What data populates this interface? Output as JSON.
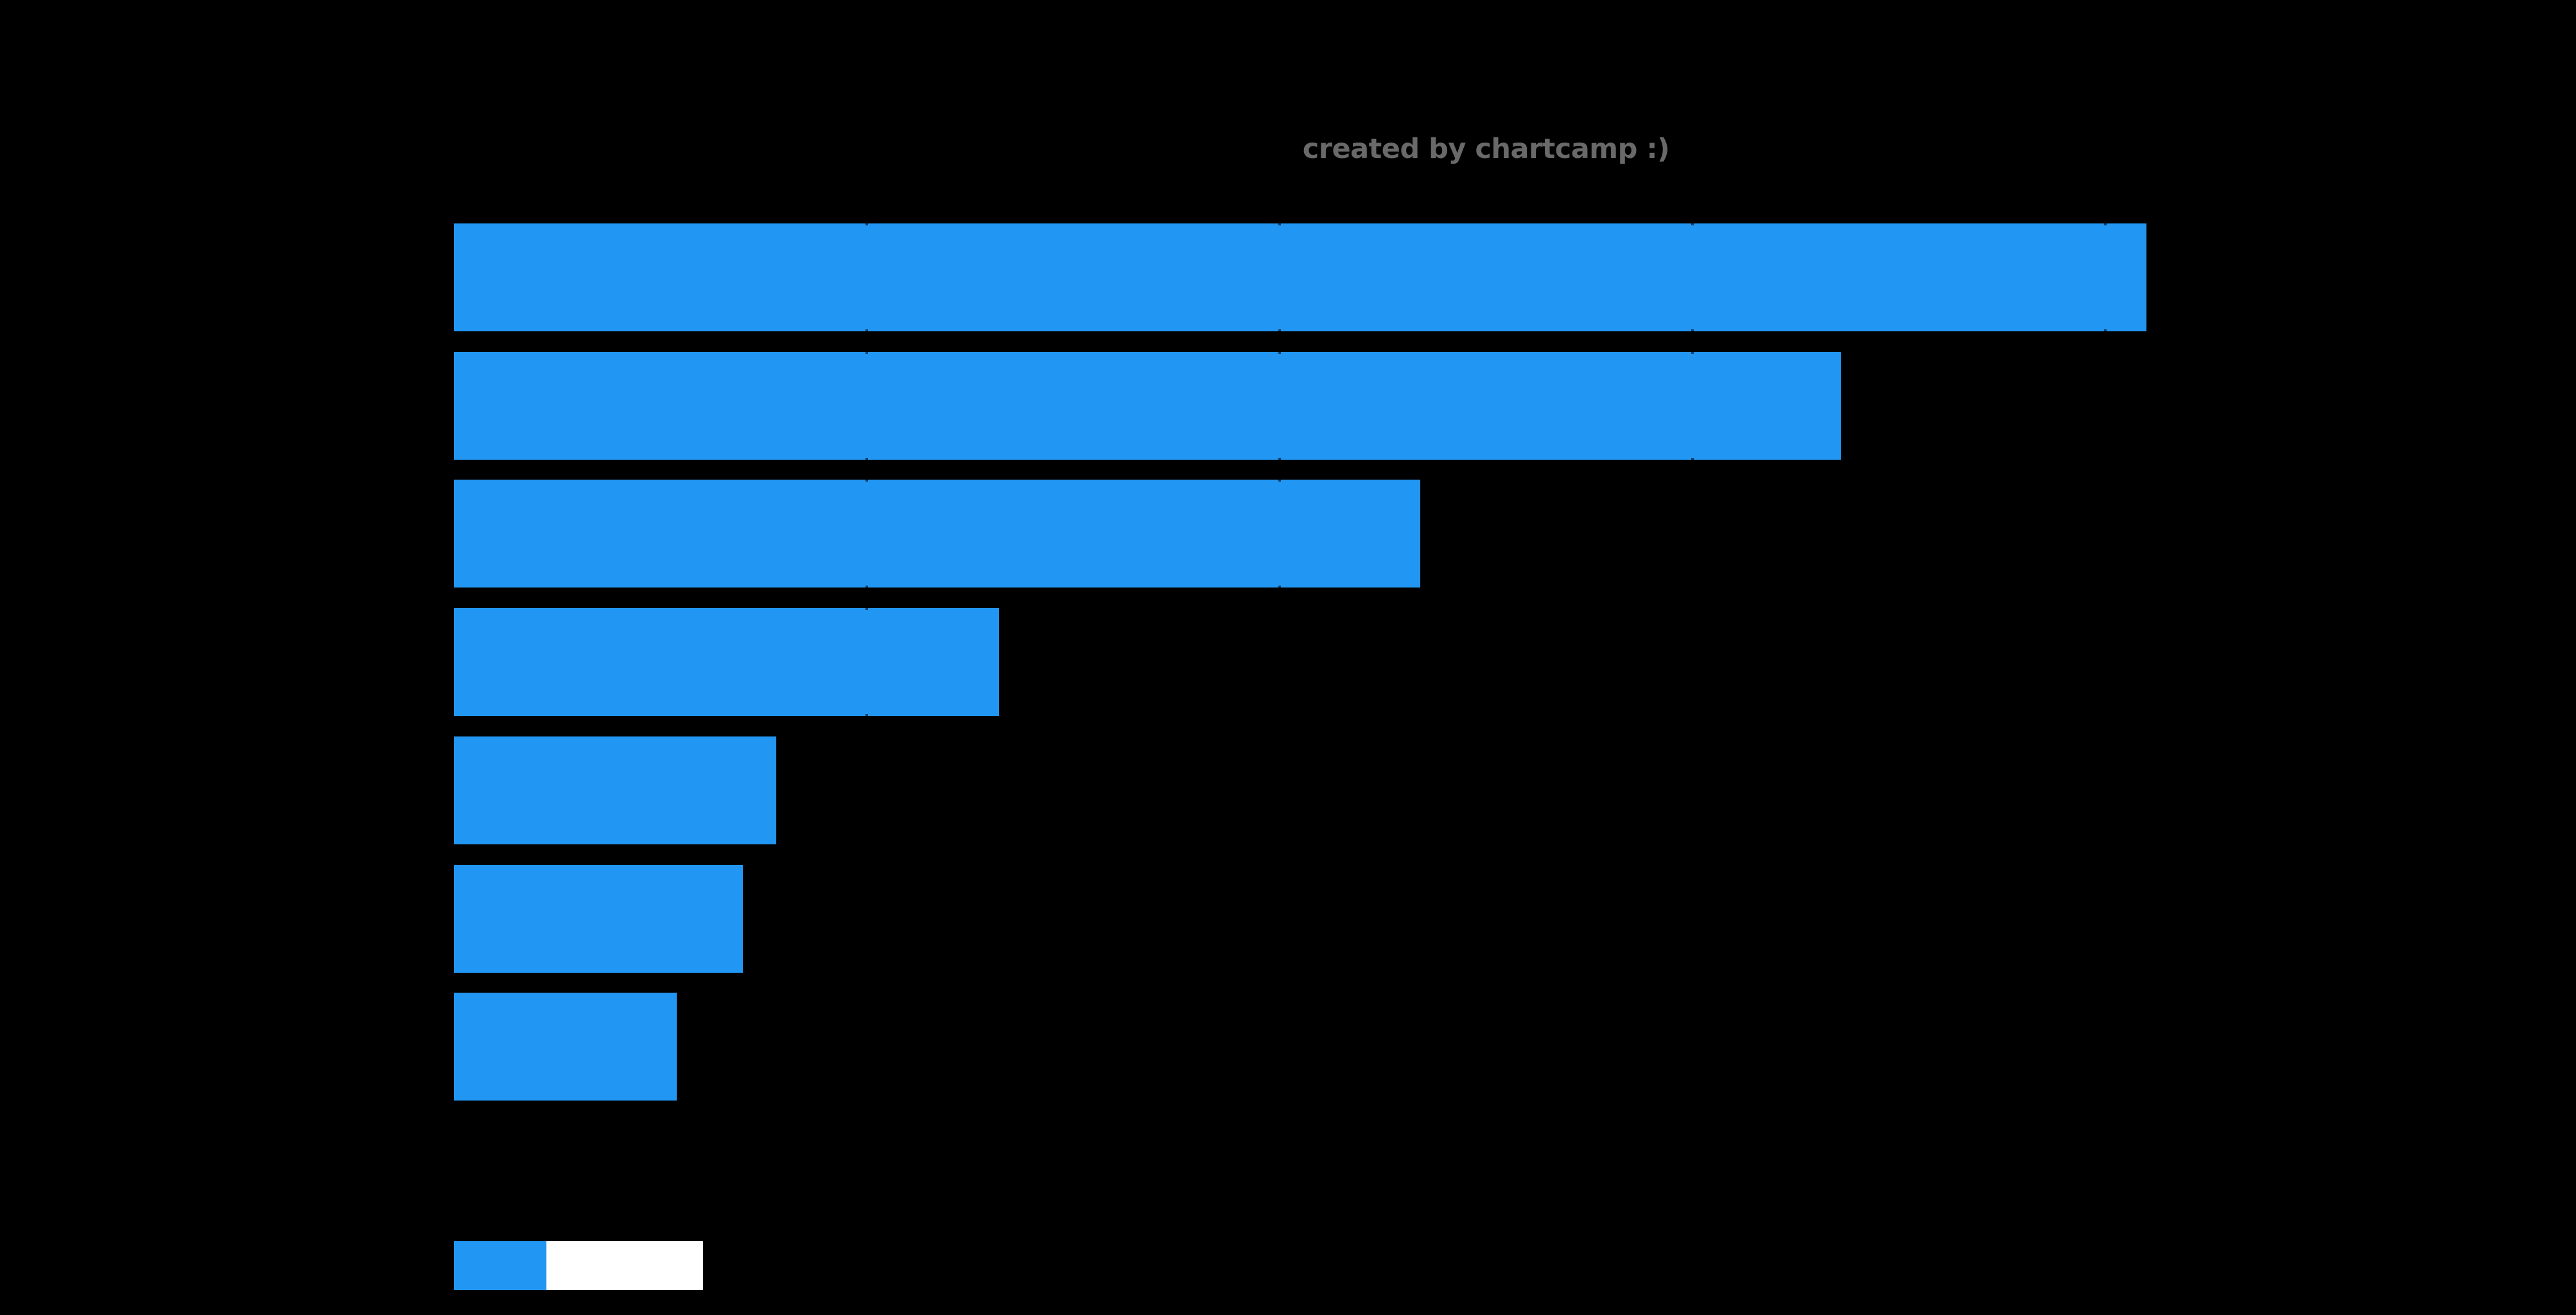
{
  "watermark": {
    "text": "created by chartcamp :)",
    "color": "#696969"
  },
  "colors": {
    "background": "#000000",
    "bar": "#2196f3",
    "gridline": "#000000",
    "legend_label_block": "#ffffff"
  },
  "chart_data": {
    "type": "bar",
    "orientation": "horizontal",
    "title": "",
    "subtitle_watermark": "created by chartcamp :)",
    "categories": [
      "",
      "",
      "",
      "",
      "",
      "",
      ""
    ],
    "values": [
      41.0,
      33.6,
      23.4,
      13.2,
      7.8,
      7.0,
      5.4
    ],
    "xlabel": "",
    "ylabel": "",
    "xlim": [
      0,
      50
    ],
    "gridlines_x": [
      10,
      20,
      30,
      40
    ],
    "grid": "on (black, hidden behind bars)",
    "bar_color": "#2196f3",
    "axis_tick_labels_visible": false,
    "legend": {
      "position": "lower-left",
      "entries": [
        {
          "swatch_color": "#2196f3",
          "label": "",
          "label_rendered_as": "solid white block"
        }
      ]
    }
  },
  "legend": {
    "swatch_color": "#2196f3",
    "label_box_color": "#ffffff"
  }
}
